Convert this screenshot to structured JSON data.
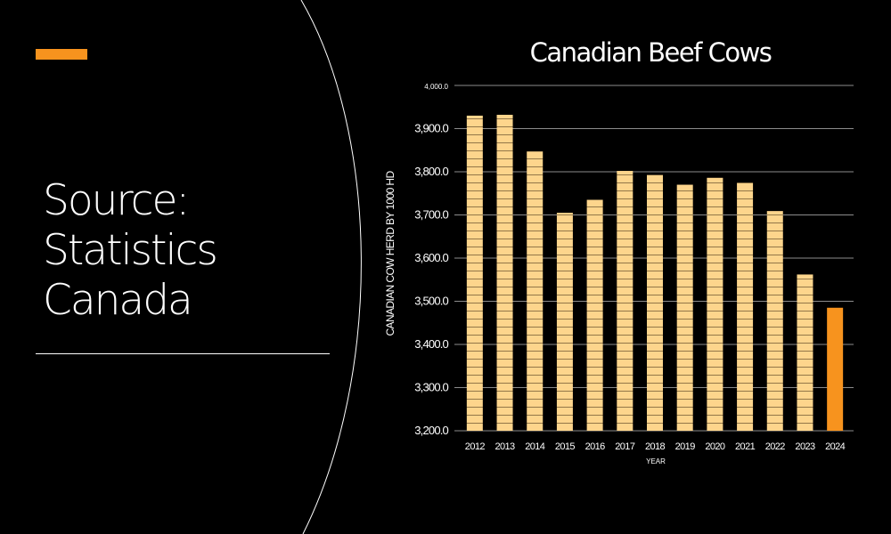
{
  "slide": {
    "source_lines": [
      "Source:",
      "Statistics",
      "Canada"
    ],
    "accent_color": "#f7931e"
  },
  "chart_data": {
    "type": "bar",
    "title": "Canadian Beef Cows",
    "xlabel": "YEAR",
    "ylabel": "CANADIAN COW HERD BY 1000 HD",
    "categories": [
      "2012",
      "2013",
      "2014",
      "2015",
      "2016",
      "2017",
      "2018",
      "2019",
      "2020",
      "2021",
      "2022",
      "2023",
      "2024"
    ],
    "values": [
      3930,
      3932,
      3847,
      3705,
      3735,
      3802,
      3793,
      3770,
      3786,
      3775,
      3709,
      3562,
      3485
    ],
    "ylim": [
      3200,
      4000
    ],
    "yticks": [
      3200,
      3300,
      3400,
      3500,
      3600,
      3700,
      3800,
      3900,
      4000
    ],
    "ytick_labels": [
      "3,200.0",
      "3,300.0",
      "3,400.0",
      "3,500.0",
      "3,600.0",
      "3,700.0",
      "3,800.0",
      "3,900.0",
      "4,000.0"
    ],
    "grid": true,
    "bar_color": "#fdd58c",
    "highlight_category": "2024",
    "highlight_color": "#f7931e"
  }
}
